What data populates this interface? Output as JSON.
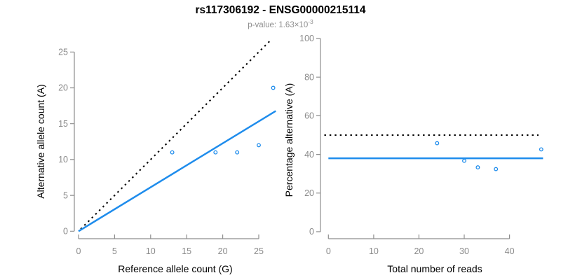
{
  "header": {
    "title": "rs117306192 - ENSG00000215114",
    "subtitle_main": "p-value: 1.63×10",
    "subtitle_exponent": "-3"
  },
  "colors": {
    "accent_blue": "#1E8CEC",
    "line_black": "#000000",
    "axis_gray": "#8e8e8e",
    "tick_label_gray": "#8a8a8a"
  },
  "chart_data": [
    {
      "name": "allele-counts-panel",
      "type": "scatter",
      "xlabel": "Reference allele count (G)",
      "ylabel": "Alternative allele count (A)",
      "xticks": [
        0,
        5,
        10,
        15,
        20,
        25
      ],
      "yticks": [
        0,
        5,
        10,
        15,
        20,
        25
      ],
      "xlim": [
        0,
        27.4
      ],
      "ylim": [
        0,
        26.8
      ],
      "grid": false,
      "legend": "none",
      "point_style": "open-circle",
      "point_color": "#1E8CEC",
      "points": [
        [
          13,
          11
        ],
        [
          19,
          11
        ],
        [
          22,
          11
        ],
        [
          25,
          12
        ],
        [
          27,
          20
        ]
      ],
      "lines": [
        {
          "name": "identity-line",
          "style": "dotted",
          "color": "#000000",
          "slope": 1,
          "intercept": 0,
          "from": [
            0.3,
            0.3
          ],
          "to": [
            26.7,
            26.7
          ]
        },
        {
          "name": "fit-line",
          "style": "solid",
          "color": "#1E8CEC",
          "slope": 0.613,
          "intercept": 0,
          "from": [
            0,
            0
          ],
          "to": [
            27.35,
            16.77
          ]
        }
      ]
    },
    {
      "name": "percentage-panel",
      "type": "scatter",
      "xlabel": "Total number of reads",
      "ylabel": "Percentage alternative (A)",
      "xticks": [
        0,
        10,
        20,
        30,
        40
      ],
      "yticks": [
        0,
        20,
        40,
        60,
        80,
        100
      ],
      "xlim": [
        -1.9,
        48.9
      ],
      "ylim": [
        0,
        100
      ],
      "grid": false,
      "legend": "none",
      "point_style": "open-circle",
      "point_color": "#1E8CEC",
      "points": [
        [
          24,
          45.8
        ],
        [
          30,
          36.7
        ],
        [
          33,
          33.3
        ],
        [
          37,
          32.4
        ],
        [
          47,
          42.6
        ]
      ],
      "lines": [
        {
          "name": "expected-50-percent-line",
          "style": "dotted",
          "color": "#000000",
          "y": 50,
          "from": [
            -0.9,
            50
          ],
          "to": [
            46.4,
            50
          ]
        },
        {
          "name": "observed-percentage-line",
          "style": "solid",
          "color": "#1E8CEC",
          "y": 38,
          "from": [
            0,
            38
          ],
          "to": [
            47.4,
            38
          ]
        }
      ]
    }
  ]
}
